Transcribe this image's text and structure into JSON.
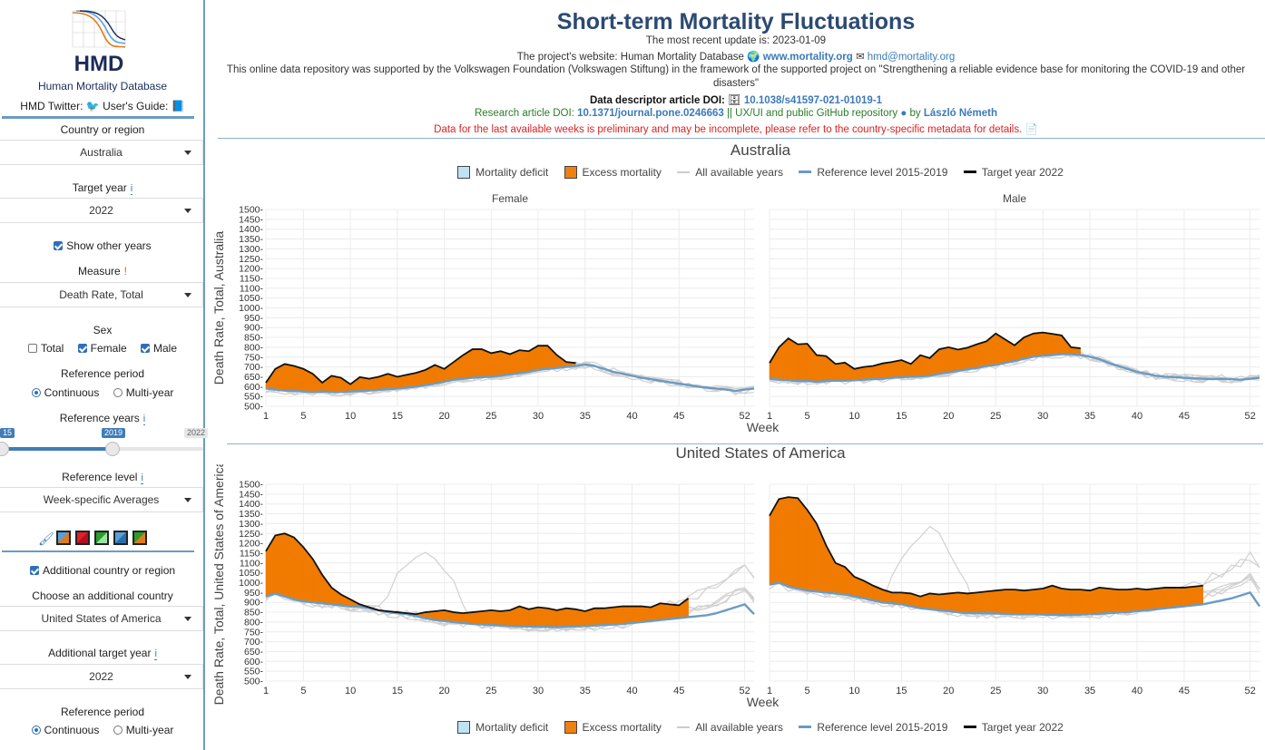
{
  "sidebar": {
    "logo_text": "HMD",
    "site_name": "Human Mortality Database",
    "twitter_label": "HMD Twitter:",
    "guide_label": "User's Guide:",
    "country_label": "Country or region",
    "country_value": "Australia",
    "target_year_label": "Target year",
    "target_year_value": "2022",
    "show_other_years": "Show other years",
    "measure_label": "Measure",
    "measure_value": "Death Rate, Total",
    "sex_label": "Sex",
    "sex_total": "Total",
    "sex_female": "Female",
    "sex_male": "Male",
    "ref_period_label": "Reference period",
    "ref_continuous": "Continuous",
    "ref_multiyear": "Multi-year",
    "ref_years_label": "Reference years",
    "slider_left_tag": "15",
    "slider_mid_tag": "2019",
    "slider_max_tag": "2022",
    "ref_level_label": "Reference level",
    "ref_level_value": "Week-specific Averages",
    "additional_country_check": "Additional country or region",
    "choose_additional_label": "Choose an additional country",
    "additional_country_value": "United States of America",
    "additional_target_label": "Additional target year",
    "additional_target_value": "2022",
    "ref_period2_label": "Reference period",
    "ref2_continuous": "Continuous",
    "ref2_multiyear": "Multi-year",
    "info_glyph": "i",
    "excl_glyph": "!",
    "colors": {
      "accent": "#3f7cb8",
      "swatches": [
        "#e07b1a",
        "#e0202a",
        "#2a9d2a",
        "#5aa0d8",
        "#e07b1a"
      ]
    }
  },
  "header": {
    "title": "Short-term Mortality Fluctuations",
    "update": "The most recent update is: 2023-01-09",
    "website_prefix": "The project's website: Human Mortality Database",
    "website_link": "www.mortality.org",
    "email_link": "hmd@mortality.org",
    "support_line1": "This online data repository was supported by the Volkswagen Foundation (Volkswagen Stiftung) in the framework of the supported project on \"Strengthening a reliable evidence base for monitoring the COVID-19 and other",
    "support_line2": "disasters\"",
    "descriptor_prefix": "Data descriptor article DOI:",
    "descriptor_link": "10.1038/s41597-021-01019-1",
    "research_prefix": "Research article DOI:",
    "research_link": "10.1371/journal.pone.0246663",
    "research_mid": "|| UX/UI and public GitHub repository",
    "research_by": "by",
    "research_author": "László Németh",
    "warning": "Data for the last available weeks is preliminary and may be incomplete, please refer to the country-specific metadata for details."
  },
  "legend": {
    "deficit": "Mortality deficit",
    "excess": "Excess mortality",
    "all_years": "All available years",
    "reference": "Reference level 2015-2019",
    "target": "Target year 2022"
  },
  "chart_data": [
    {
      "type": "area",
      "title": "Australia",
      "panels": [
        "Female",
        "Male"
      ],
      "xlabel": "Week",
      "ylabel": "Death Rate, Total, Australia",
      "ylim": [
        500,
        1500
      ],
      "yticks": [
        500,
        550,
        600,
        650,
        700,
        750,
        800,
        850,
        900,
        950,
        1000,
        1050,
        1100,
        1150,
        1200,
        1250,
        1300,
        1350,
        1400,
        1450,
        1500
      ],
      "xticks": [
        1,
        5,
        10,
        15,
        20,
        25,
        30,
        35,
        40,
        45,
        52
      ],
      "xlim": [
        1,
        53
      ],
      "series": [
        {
          "name": "Female",
          "reference": [
            590,
            585,
            580,
            578,
            575,
            573,
            575,
            572,
            573,
            575,
            577,
            580,
            583,
            587,
            590,
            595,
            600,
            608,
            615,
            625,
            635,
            640,
            645,
            648,
            650,
            655,
            662,
            668,
            675,
            685,
            690,
            695,
            700,
            705,
            712,
            705,
            690,
            675,
            665,
            655,
            645,
            638,
            630,
            622,
            615,
            608,
            600,
            595,
            590,
            585,
            578,
            585,
            590
          ],
          "target": [
            620,
            690,
            715,
            705,
            690,
            665,
            620,
            655,
            645,
            612,
            648,
            640,
            650,
            665,
            650,
            660,
            670,
            685,
            710,
            690,
            725,
            760,
            790,
            790,
            770,
            780,
            765,
            785,
            780,
            808,
            808,
            760,
            725,
            720
          ]
        },
        {
          "name": "Male",
          "reference": [
            640,
            635,
            632,
            628,
            628,
            625,
            628,
            630,
            630,
            632,
            635,
            638,
            640,
            645,
            648,
            650,
            652,
            655,
            665,
            672,
            680,
            688,
            695,
            705,
            710,
            720,
            730,
            742,
            752,
            758,
            760,
            765,
            765,
            760,
            752,
            740,
            720,
            705,
            690,
            675,
            665,
            655,
            650,
            648,
            645,
            642,
            640,
            638,
            640,
            638,
            635,
            640,
            645
          ],
          "target": [
            720,
            800,
            845,
            815,
            818,
            760,
            755,
            715,
            722,
            690,
            700,
            705,
            718,
            725,
            735,
            715,
            760,
            745,
            790,
            800,
            788,
            798,
            815,
            830,
            870,
            840,
            810,
            850,
            870,
            875,
            868,
            860,
            800,
            795
          ]
        }
      ]
    },
    {
      "type": "area",
      "title": "United States of America",
      "panels": [
        "Female",
        "Male"
      ],
      "xlabel": "Week",
      "ylabel": "Death Rate, Total, United States of America",
      "ylim": [
        500,
        1500
      ],
      "yticks": [
        500,
        550,
        600,
        650,
        700,
        750,
        800,
        850,
        900,
        950,
        1000,
        1050,
        1100,
        1150,
        1200,
        1250,
        1300,
        1350,
        1400,
        1450,
        1500
      ],
      "xticks": [
        1,
        5,
        10,
        15,
        20,
        25,
        30,
        35,
        40,
        45,
        52
      ],
      "xlim": [
        1,
        53
      ],
      "series": [
        {
          "name": "Female",
          "reference": [
            930,
            945,
            930,
            915,
            905,
            900,
            895,
            890,
            885,
            880,
            878,
            870,
            860,
            850,
            845,
            840,
            830,
            820,
            810,
            805,
            800,
            795,
            790,
            788,
            785,
            782,
            780,
            778,
            777,
            776,
            775,
            774,
            776,
            778,
            780,
            782,
            785,
            788,
            790,
            795,
            800,
            805,
            810,
            815,
            820,
            825,
            830,
            835,
            845,
            860,
            875,
            890,
            840
          ],
          "target": [
            1160,
            1240,
            1250,
            1230,
            1180,
            1120,
            1040,
            975,
            940,
            915,
            890,
            875,
            860,
            855,
            850,
            845,
            840,
            850,
            855,
            860,
            850,
            845,
            850,
            855,
            860,
            855,
            860,
            880,
            865,
            875,
            870,
            860,
            870,
            865,
            855,
            870,
            870,
            875,
            880,
            880,
            880,
            875,
            895,
            890,
            885,
            920
          ]
        },
        {
          "name": "Male",
          "reference": [
            990,
            1000,
            980,
            970,
            960,
            955,
            950,
            945,
            940,
            930,
            920,
            910,
            900,
            895,
            890,
            880,
            870,
            865,
            860,
            855,
            850,
            845,
            845,
            845,
            843,
            842,
            840,
            840,
            840,
            838,
            836,
            835,
            836,
            838,
            840,
            842,
            845,
            848,
            850,
            855,
            860,
            865,
            870,
            875,
            880,
            885,
            890,
            900,
            910,
            920,
            935,
            950,
            880
          ],
          "target": [
            1340,
            1425,
            1435,
            1430,
            1370,
            1300,
            1190,
            1100,
            1080,
            1030,
            1010,
            985,
            965,
            950,
            950,
            945,
            930,
            945,
            940,
            945,
            950,
            945,
            950,
            955,
            960,
            965,
            965,
            960,
            965,
            970,
            985,
            970,
            965,
            965,
            960,
            975,
            970,
            965,
            965,
            970,
            965,
            970,
            975,
            975,
            975,
            980,
            985
          ]
        }
      ]
    }
  ]
}
